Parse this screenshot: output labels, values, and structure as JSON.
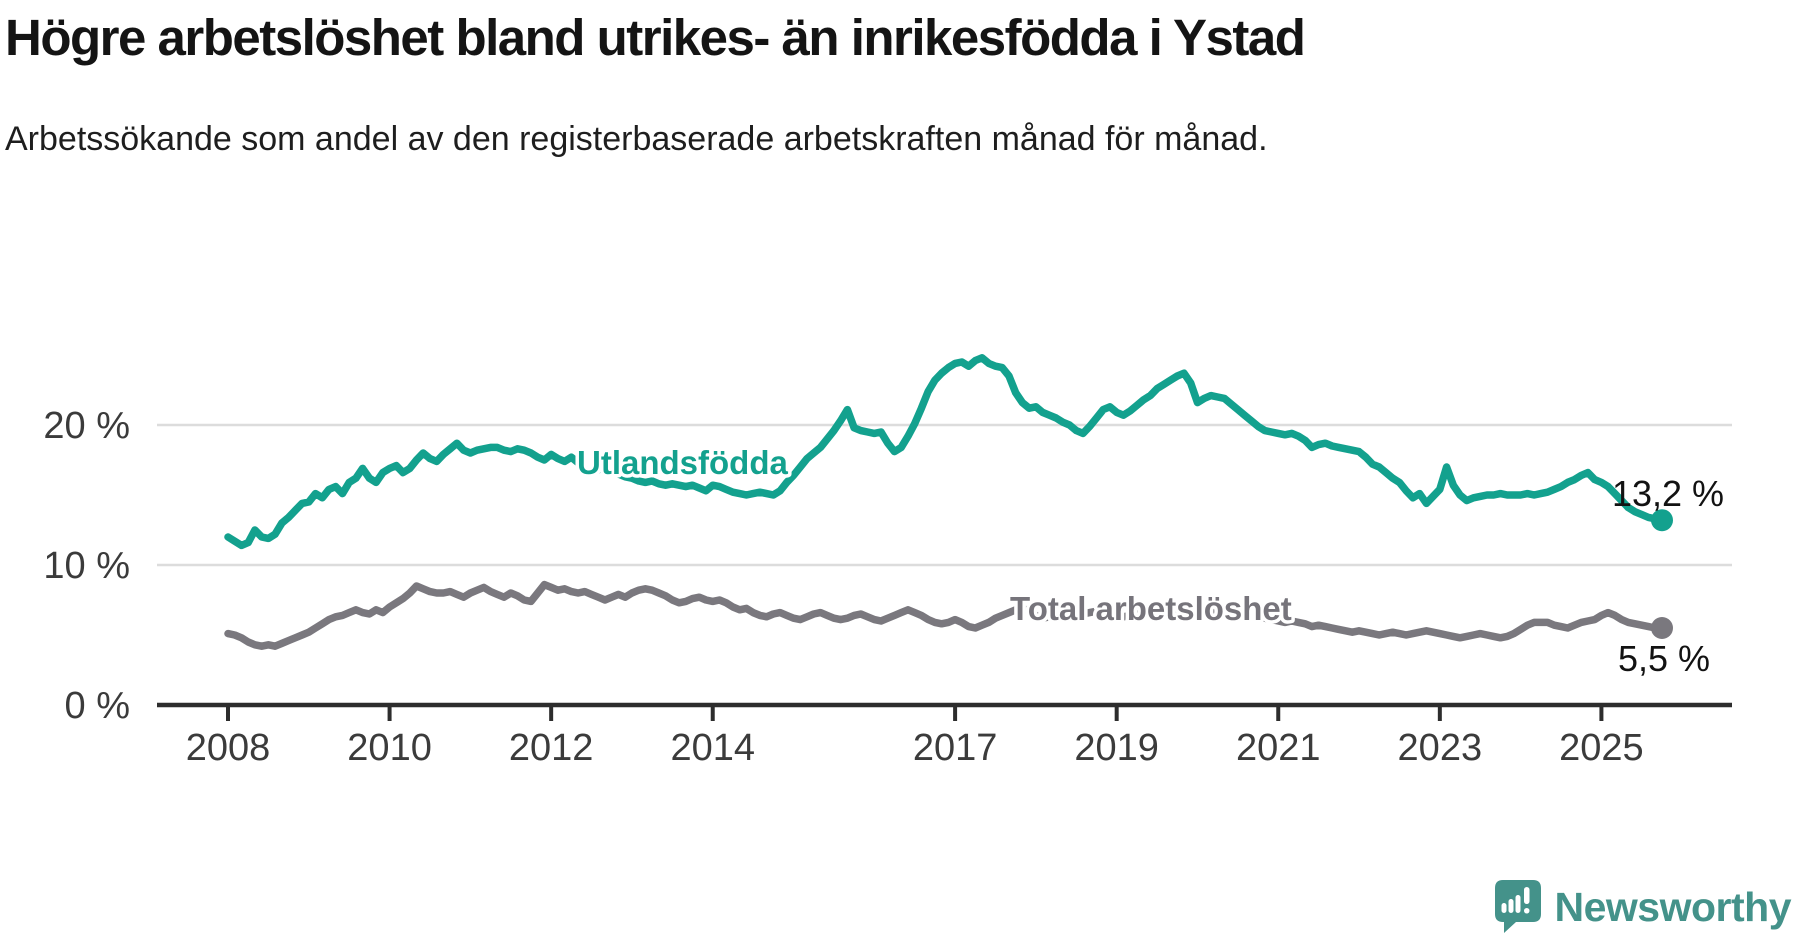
{
  "title": "Högre arbetslöshet bland utrikes- än inrikesfödda i Ystad",
  "subtitle": "Arbetssökande som andel av den registerbaserade arbetskraften månad för månad.",
  "logo": {
    "text": "Newsworthy",
    "color": "#44928A"
  },
  "colors": {
    "foreign_born": "#13A18E",
    "total": "#7A787E",
    "total_label": "#76747B",
    "axis": "#2D2D2D",
    "grid": "#DCDCDC",
    "tick_label": "#3B3B3B",
    "end_label": "#121212"
  },
  "chart_data": {
    "type": "line",
    "title": "Högre arbetslöshet bland utrikes- än inrikesfödda i Ystad",
    "subtitle": "Arbetssökande som andel av den registerbaserade arbetskraften månad för månad.",
    "frequency": "monthly",
    "start_year": 2008,
    "x_start": "2008-01",
    "x_end": "2025-10",
    "ylim": [
      0,
      27
    ],
    "grid": "horizontal",
    "legend_position": "inline-labels",
    "yticks": [
      {
        "value": 0,
        "label": "0 %"
      },
      {
        "value": 10,
        "label": "10 %"
      },
      {
        "value": 20,
        "label": "20 %"
      }
    ],
    "xticks": [
      {
        "year": 2008,
        "label": "2008"
      },
      {
        "year": 2010,
        "label": "2010"
      },
      {
        "year": 2012,
        "label": "2012"
      },
      {
        "year": 2014,
        "label": "2014"
      },
      {
        "year": 2017,
        "label": "2017"
      },
      {
        "year": 2019,
        "label": "2019"
      },
      {
        "year": 2021,
        "label": "2021"
      },
      {
        "year": 2023,
        "label": "2023"
      },
      {
        "year": 2025,
        "label": "2025"
      }
    ],
    "series": [
      {
        "name": "Utlandsfödda",
        "color": "#13A18E",
        "end_label": "13,2 %",
        "end_value": 13.2,
        "values": [
          12.0,
          11.7,
          11.4,
          11.6,
          12.5,
          12.0,
          11.9,
          12.2,
          13.0,
          13.4,
          13.9,
          14.4,
          14.5,
          15.1,
          14.8,
          15.4,
          15.6,
          15.1,
          15.9,
          16.2,
          16.9,
          16.2,
          15.9,
          16.6,
          16.9,
          17.1,
          16.6,
          16.9,
          17.5,
          18.0,
          17.6,
          17.4,
          17.9,
          18.3,
          18.7,
          18.2,
          18.0,
          18.2,
          18.3,
          18.4,
          18.4,
          18.2,
          18.1,
          18.3,
          18.2,
          18.0,
          17.7,
          17.5,
          17.9,
          17.6,
          17.4,
          17.7,
          17.3,
          16.8,
          16.6,
          16.8,
          17.0,
          16.8,
          16.5,
          16.3,
          16.2,
          16.0,
          15.9,
          16.0,
          15.8,
          15.7,
          15.8,
          15.7,
          15.6,
          15.7,
          15.5,
          15.3,
          15.7,
          15.6,
          15.4,
          15.2,
          15.1,
          15.0,
          15.1,
          15.2,
          15.1,
          15.0,
          15.3,
          15.9,
          16.4,
          17.0,
          17.6,
          18.0,
          18.4,
          19.0,
          19.6,
          20.3,
          21.1,
          19.8,
          19.6,
          19.5,
          19.4,
          19.5,
          18.7,
          18.1,
          18.4,
          19.2,
          20.1,
          21.2,
          22.4,
          23.2,
          23.7,
          24.1,
          24.4,
          24.5,
          24.2,
          24.6,
          24.8,
          24.4,
          24.2,
          24.1,
          23.5,
          22.3,
          21.6,
          21.2,
          21.3,
          20.9,
          20.7,
          20.5,
          20.2,
          20.0,
          19.6,
          19.4,
          19.9,
          20.5,
          21.1,
          21.3,
          20.9,
          20.7,
          21.0,
          21.4,
          21.8,
          22.1,
          22.6,
          22.9,
          23.2,
          23.5,
          23.7,
          23.0,
          21.6,
          21.9,
          22.1,
          22.0,
          21.9,
          21.5,
          21.1,
          20.7,
          20.3,
          19.9,
          19.6,
          19.5,
          19.4,
          19.3,
          19.4,
          19.2,
          18.9,
          18.4,
          18.6,
          18.7,
          18.5,
          18.4,
          18.3,
          18.2,
          18.1,
          17.7,
          17.2,
          17.0,
          16.6,
          16.2,
          15.9,
          15.3,
          14.8,
          15.1,
          14.4,
          14.9,
          15.4,
          17.0,
          15.7,
          15.0,
          14.6,
          14.8,
          14.9,
          15.0,
          15.0,
          15.1,
          15.0,
          15.0,
          15.0,
          15.1,
          15.0,
          15.1,
          15.2,
          15.4,
          15.6,
          15.9,
          16.1,
          16.4,
          16.6,
          16.1,
          15.9,
          15.6,
          15.1,
          14.6,
          14.1,
          13.8,
          13.6,
          13.4,
          13.3,
          13.2
        ]
      },
      {
        "name": "Total arbetslöshet",
        "color": "#7A787E",
        "end_label": "5,5 %",
        "end_value": 5.5,
        "values": [
          5.1,
          5.0,
          4.8,
          4.5,
          4.3,
          4.2,
          4.3,
          4.2,
          4.4,
          4.6,
          4.8,
          5.0,
          5.2,
          5.5,
          5.8,
          6.1,
          6.3,
          6.4,
          6.6,
          6.8,
          6.6,
          6.5,
          6.8,
          6.6,
          7.0,
          7.3,
          7.6,
          8.0,
          8.5,
          8.3,
          8.1,
          8.0,
          8.0,
          8.1,
          7.9,
          7.7,
          8.0,
          8.2,
          8.4,
          8.1,
          7.9,
          7.7,
          8.0,
          7.8,
          7.5,
          7.4,
          8.0,
          8.6,
          8.4,
          8.2,
          8.3,
          8.1,
          8.0,
          8.1,
          7.9,
          7.7,
          7.5,
          7.7,
          7.9,
          7.7,
          8.0,
          8.2,
          8.3,
          8.2,
          8.0,
          7.8,
          7.5,
          7.3,
          7.4,
          7.6,
          7.7,
          7.5,
          7.4,
          7.5,
          7.3,
          7.0,
          6.8,
          6.9,
          6.6,
          6.4,
          6.3,
          6.5,
          6.6,
          6.4,
          6.2,
          6.1,
          6.3,
          6.5,
          6.6,
          6.4,
          6.2,
          6.1,
          6.2,
          6.4,
          6.5,
          6.3,
          6.1,
          6.0,
          6.2,
          6.4,
          6.6,
          6.8,
          6.6,
          6.4,
          6.1,
          5.9,
          5.8,
          5.9,
          6.1,
          5.9,
          5.6,
          5.5,
          5.7,
          5.9,
          6.2,
          6.4,
          6.6,
          6.8,
          6.9,
          6.7,
          6.4,
          6.2,
          6.3,
          6.5,
          6.6,
          6.4,
          6.3,
          6.5,
          6.6,
          6.7,
          6.6,
          6.5,
          6.4,
          6.3,
          6.4,
          6.5,
          6.6,
          6.8,
          7.0,
          6.9,
          6.7,
          6.6,
          6.5,
          6.6,
          6.5,
          6.4,
          6.6,
          6.9,
          7.0,
          6.9,
          6.8,
          6.7,
          6.5,
          6.4,
          6.2,
          6.1,
          6.0,
          5.9,
          6.0,
          5.9,
          5.8,
          5.6,
          5.7,
          5.6,
          5.5,
          5.4,
          5.3,
          5.2,
          5.3,
          5.2,
          5.1,
          5.0,
          5.1,
          5.2,
          5.1,
          5.0,
          5.1,
          5.2,
          5.3,
          5.2,
          5.1,
          5.0,
          4.9,
          4.8,
          4.9,
          5.0,
          5.1,
          5.0,
          4.9,
          4.8,
          4.9,
          5.1,
          5.4,
          5.7,
          5.9,
          5.9,
          5.9,
          5.7,
          5.6,
          5.5,
          5.7,
          5.9,
          6.0,
          6.1,
          6.4,
          6.6,
          6.4,
          6.1,
          5.9,
          5.8,
          5.7,
          5.6,
          5.5,
          5.5
        ]
      }
    ]
  }
}
